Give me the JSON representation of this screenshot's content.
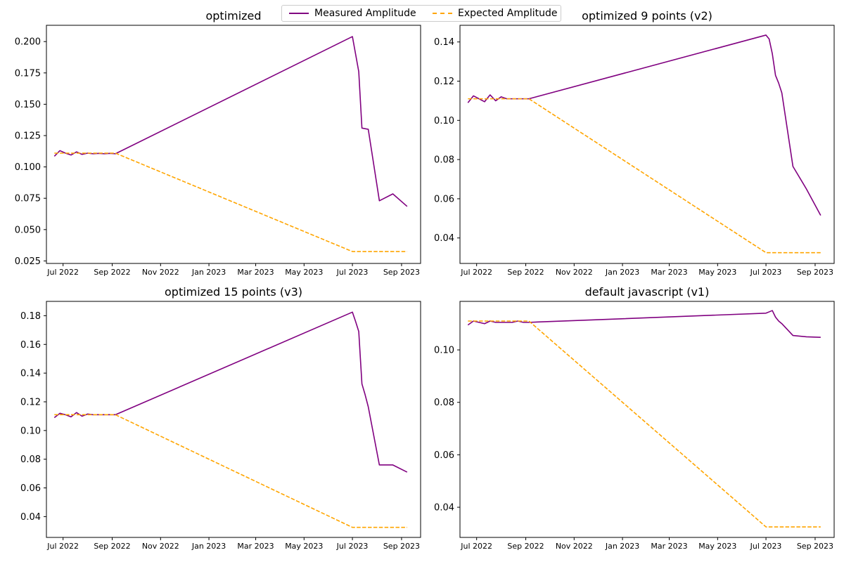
{
  "legend": {
    "measured_label": "Measured Amplitude",
    "expected_label": "Expected Amplitude"
  },
  "colors": {
    "measured": "#800080",
    "expected": "#FFA500"
  },
  "chart_data": [
    {
      "type": "line",
      "title": "optimized",
      "xlabel": "",
      "ylabel": "",
      "x_ticks": [
        "Jul 2022",
        "Sep 2022",
        "Nov 2022",
        "Jan 2023",
        "Mar 2023",
        "May 2023",
        "Jul 2023",
        "Sep 2023"
      ],
      "y_ticks": [
        "0.025",
        "0.050",
        "0.075",
        "0.100",
        "0.125",
        "0.150",
        "0.175",
        "0.200"
      ],
      "ylim": [
        0.023,
        0.213
      ],
      "legend_position": "top-center",
      "grid": false,
      "series": [
        {
          "name": "Measured Amplitude",
          "style": "solid",
          "x": [
            "2022-06-20",
            "2022-06-27",
            "2022-07-04",
            "2022-07-11",
            "2022-07-18",
            "2022-07-25",
            "2022-08-01",
            "2022-08-08",
            "2022-08-15",
            "2022-08-22",
            "2022-08-29",
            "2022-09-05",
            "2023-07-01",
            "2023-07-05",
            "2023-07-09",
            "2023-07-13",
            "2023-07-17",
            "2023-07-21",
            "2023-08-04",
            "2023-08-21",
            "2023-09-08"
          ],
          "y": [
            0.1085,
            0.113,
            0.111,
            0.1095,
            0.112,
            0.11,
            0.111,
            0.1105,
            0.1108,
            0.1105,
            0.1108,
            0.1105,
            0.204,
            0.19,
            0.176,
            0.131,
            0.1305,
            0.13,
            0.073,
            0.0785,
            0.0685
          ]
        },
        {
          "name": "Expected Amplitude",
          "style": "dashed",
          "x": [
            "2022-06-20",
            "2022-06-27",
            "2022-07-04",
            "2022-07-11",
            "2022-07-18",
            "2022-07-25",
            "2022-08-01",
            "2022-08-08",
            "2022-08-15",
            "2022-08-22",
            "2022-08-29",
            "2022-09-05",
            "2023-07-01",
            "2023-07-21",
            "2023-08-04",
            "2023-08-21",
            "2023-09-08"
          ],
          "y": [
            0.111,
            0.111,
            0.111,
            0.111,
            0.111,
            0.111,
            0.111,
            0.111,
            0.111,
            0.111,
            0.111,
            0.111,
            0.0325,
            0.0325,
            0.0325,
            0.0325,
            0.0325
          ]
        }
      ]
    },
    {
      "type": "line",
      "title": "optimized 9 points (v2)",
      "xlabel": "",
      "ylabel": "",
      "x_ticks": [
        "Jul 2022",
        "Sep 2022",
        "Nov 2022",
        "Jan 2023",
        "Mar 2023",
        "May 2023",
        "Jul 2023",
        "Sep 2023"
      ],
      "y_ticks": [
        "0.04",
        "0.06",
        "0.08",
        "0.10",
        "0.12",
        "0.14"
      ],
      "ylim": [
        0.027,
        0.1485
      ],
      "legend_position": "top-center",
      "grid": false,
      "series": [
        {
          "name": "Measured Amplitude",
          "style": "solid",
          "x": [
            "2022-06-20",
            "2022-06-27",
            "2022-07-04",
            "2022-07-11",
            "2022-07-18",
            "2022-07-25",
            "2022-08-01",
            "2022-08-08",
            "2022-08-15",
            "2022-08-22",
            "2022-08-29",
            "2022-09-05",
            "2023-07-01",
            "2023-07-05",
            "2023-07-09",
            "2023-07-13",
            "2023-07-17",
            "2023-07-21",
            "2023-08-04",
            "2023-08-21",
            "2023-09-08"
          ],
          "y": [
            0.109,
            0.1125,
            0.111,
            0.1095,
            0.113,
            0.11,
            0.112,
            0.111,
            0.111,
            0.111,
            0.111,
            0.111,
            0.1435,
            0.1415,
            0.134,
            0.123,
            0.119,
            0.114,
            0.0765,
            0.065,
            0.0515
          ]
        },
        {
          "name": "Expected Amplitude",
          "style": "dashed",
          "x": [
            "2022-06-20",
            "2022-06-27",
            "2022-07-04",
            "2022-07-11",
            "2022-07-18",
            "2022-07-25",
            "2022-08-01",
            "2022-08-08",
            "2022-08-15",
            "2022-08-22",
            "2022-08-29",
            "2022-09-05",
            "2023-07-01",
            "2023-07-21",
            "2023-08-04",
            "2023-08-21",
            "2023-09-08"
          ],
          "y": [
            0.111,
            0.111,
            0.111,
            0.111,
            0.111,
            0.111,
            0.111,
            0.111,
            0.111,
            0.111,
            0.111,
            0.111,
            0.0325,
            0.0325,
            0.0325,
            0.0325,
            0.0325
          ]
        }
      ]
    },
    {
      "type": "line",
      "title": "optimized 15 points (v3)",
      "xlabel": "",
      "ylabel": "",
      "x_ticks": [
        "Jul 2022",
        "Sep 2022",
        "Nov 2022",
        "Jan 2023",
        "Mar 2023",
        "May 2023",
        "Jul 2023",
        "Sep 2023"
      ],
      "y_ticks": [
        "0.04",
        "0.06",
        "0.08",
        "0.10",
        "0.12",
        "0.14",
        "0.16",
        "0.18"
      ],
      "ylim": [
        0.0255,
        0.19
      ],
      "legend_position": "top-center",
      "grid": false,
      "series": [
        {
          "name": "Measured Amplitude",
          "style": "solid",
          "x": [
            "2022-06-20",
            "2022-06-27",
            "2022-07-04",
            "2022-07-11",
            "2022-07-18",
            "2022-07-25",
            "2022-08-01",
            "2022-08-08",
            "2022-08-15",
            "2022-08-22",
            "2022-08-29",
            "2022-09-05",
            "2023-07-01",
            "2023-07-05",
            "2023-07-09",
            "2023-07-13",
            "2023-07-17",
            "2023-07-21",
            "2023-08-04",
            "2023-08-21",
            "2023-09-08"
          ],
          "y": [
            0.109,
            0.112,
            0.111,
            0.1095,
            0.1125,
            0.11,
            0.1115,
            0.111,
            0.111,
            0.111,
            0.111,
            0.111,
            0.1825,
            0.176,
            0.169,
            0.1325,
            0.125,
            0.1165,
            0.076,
            0.076,
            0.071
          ]
        },
        {
          "name": "Expected Amplitude",
          "style": "dashed",
          "x": [
            "2022-06-20",
            "2022-06-27",
            "2022-07-04",
            "2022-07-11",
            "2022-07-18",
            "2022-07-25",
            "2022-08-01",
            "2022-08-08",
            "2022-08-15",
            "2022-08-22",
            "2022-08-29",
            "2022-09-05",
            "2023-07-01",
            "2023-07-21",
            "2023-08-04",
            "2023-08-21",
            "2023-09-08"
          ],
          "y": [
            0.111,
            0.111,
            0.111,
            0.111,
            0.111,
            0.111,
            0.111,
            0.111,
            0.111,
            0.111,
            0.111,
            0.111,
            0.0325,
            0.0325,
            0.0325,
            0.0325,
            0.0325
          ]
        }
      ]
    },
    {
      "type": "line",
      "title": "default javascript (v1)",
      "xlabel": "",
      "ylabel": "",
      "x_ticks": [
        "Jul 2022",
        "Sep 2022",
        "Nov 2022",
        "Jan 2023",
        "Mar 2023",
        "May 2023",
        "Jul 2023",
        "Sep 2023"
      ],
      "y_ticks": [
        "0.04",
        "0.06",
        "0.08",
        "0.10"
      ],
      "ylim": [
        0.0285,
        0.1185
      ],
      "legend_position": "top-center",
      "grid": false,
      "series": [
        {
          "name": "Measured Amplitude",
          "style": "solid",
          "x": [
            "2022-06-20",
            "2022-06-27",
            "2022-07-04",
            "2022-07-11",
            "2022-07-18",
            "2022-07-25",
            "2022-08-01",
            "2022-08-08",
            "2022-08-15",
            "2022-08-22",
            "2022-08-29",
            "2022-09-05",
            "2023-07-01",
            "2023-07-05",
            "2023-07-09",
            "2023-07-13",
            "2023-07-17",
            "2023-07-21",
            "2023-08-04",
            "2023-08-21",
            "2023-09-08"
          ],
          "y": [
            0.1095,
            0.111,
            0.1105,
            0.11,
            0.111,
            0.1105,
            0.1105,
            0.1105,
            0.1105,
            0.111,
            0.1105,
            0.1105,
            0.114,
            0.1145,
            0.115,
            0.1125,
            0.111,
            0.11,
            0.1055,
            0.105,
            0.1048
          ]
        },
        {
          "name": "Expected Amplitude",
          "style": "dashed",
          "x": [
            "2022-06-20",
            "2022-06-27",
            "2022-07-04",
            "2022-07-11",
            "2022-07-18",
            "2022-07-25",
            "2022-08-01",
            "2022-08-08",
            "2022-08-15",
            "2022-08-22",
            "2022-08-29",
            "2022-09-05",
            "2023-07-01",
            "2023-07-21",
            "2023-08-04",
            "2023-08-21",
            "2023-09-08"
          ],
          "y": [
            0.111,
            0.111,
            0.111,
            0.111,
            0.111,
            0.111,
            0.111,
            0.111,
            0.111,
            0.111,
            0.111,
            0.111,
            0.0325,
            0.0325,
            0.0325,
            0.0325,
            0.0325
          ]
        }
      ]
    }
  ]
}
